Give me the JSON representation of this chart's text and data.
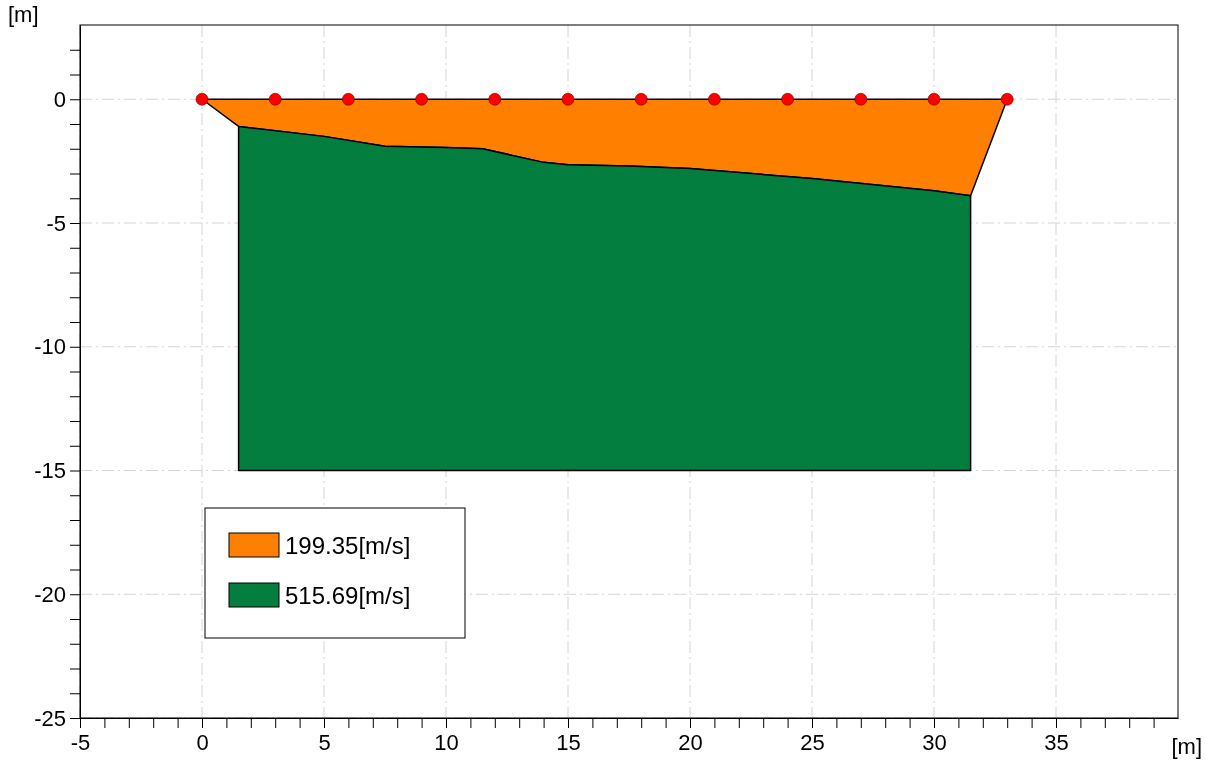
{
  "chart_data": {
    "type": "area",
    "xlabel": "[m]",
    "ylabel": "[m]",
    "xlim": [
      -5,
      40
    ],
    "ylim": [
      -25,
      3
    ],
    "xticks": [
      -5,
      {
        "value": -4,
        "label": null
      },
      {
        "value": -3,
        "label": null
      },
      {
        "value": -2,
        "label": null
      },
      {
        "value": -1,
        "label": null
      },
      0,
      {
        "value": 1,
        "label": null
      },
      {
        "value": 2,
        "label": null
      },
      {
        "value": 3,
        "label": null
      },
      {
        "value": 4,
        "label": null
      },
      5,
      {
        "value": 6,
        "label": null
      },
      {
        "value": 7,
        "label": null
      },
      {
        "value": 8,
        "label": null
      },
      {
        "value": 9,
        "label": null
      },
      10,
      {
        "value": 11,
        "label": null
      },
      {
        "value": 12,
        "label": null
      },
      {
        "value": 13,
        "label": null
      },
      {
        "value": 14,
        "label": null
      },
      15,
      {
        "value": 16,
        "label": null
      },
      {
        "value": 17,
        "label": null
      },
      {
        "value": 18,
        "label": null
      },
      {
        "value": 19,
        "label": null
      },
      20,
      {
        "value": 21,
        "label": null
      },
      {
        "value": 22,
        "label": null
      },
      {
        "value": 23,
        "label": null
      },
      {
        "value": 24,
        "label": null
      },
      25,
      {
        "value": 26,
        "label": null
      },
      {
        "value": 27,
        "label": null
      },
      {
        "value": 28,
        "label": null
      },
      {
        "value": 29,
        "label": null
      },
      30,
      {
        "value": 31,
        "label": null
      },
      {
        "value": 32,
        "label": null
      },
      {
        "value": 33,
        "label": null
      },
      {
        "value": 34,
        "label": null
      },
      35,
      {
        "value": 36,
        "label": null
      },
      {
        "value": 37,
        "label": null
      },
      {
        "value": 38,
        "label": null
      },
      {
        "value": 39,
        "label": null
      }
    ],
    "yticks": [
      -25,
      {
        "value": -24,
        "label": null
      },
      {
        "value": -23,
        "label": null
      },
      {
        "value": -22,
        "label": null
      },
      {
        "value": -21,
        "label": null
      },
      -20,
      {
        "value": -19,
        "label": null
      },
      {
        "value": -18,
        "label": null
      },
      {
        "value": -17,
        "label": null
      },
      {
        "value": -16,
        "label": null
      },
      -15,
      {
        "value": -14,
        "label": null
      },
      {
        "value": -13,
        "label": null
      },
      {
        "value": -12,
        "label": null
      },
      {
        "value": -11,
        "label": null
      },
      -10,
      {
        "value": -9,
        "label": null
      },
      {
        "value": -8,
        "label": null
      },
      {
        "value": -7,
        "label": null
      },
      {
        "value": -6,
        "label": null
      },
      -5,
      {
        "value": -4,
        "label": null
      },
      {
        "value": -3,
        "label": null
      },
      {
        "value": -2,
        "label": null
      },
      {
        "value": -1,
        "label": null
      },
      0,
      {
        "value": 1,
        "label": null
      },
      {
        "value": 2,
        "label": null
      }
    ],
    "grid": true,
    "legend": "bottom left",
    "stacked": true,
    "x": [
      0,
      1.5,
      5,
      7.5,
      10,
      11.5,
      14,
      15,
      17.5,
      20,
      25,
      30,
      31.5,
      33
    ],
    "series": [
      {
        "name": "199.35[m/s]",
        "color": "#ff8000",
        "values": [
          0,
          -1.1,
          -1.5,
          -1.9,
          -1.95,
          -2,
          -2.55,
          -2.65,
          -2.7,
          -2.8,
          -3.2,
          -3.7,
          -3.9,
          0
        ]
      },
      {
        "name": "515.69[m/s]",
        "color": "#037e3e",
        "values": [
          null,
          -13.9,
          -13.5,
          -13.1,
          -13.05,
          -13,
          -12.45,
          -12.35,
          -12.3,
          -12.2,
          -11.8,
          -11.3,
          -11.1,
          null
        ]
      },
      {
        "type": "scatter",
        "color": "#ff0000",
        "marker": "circle",
        "x": [
          0,
          3,
          6,
          9,
          12,
          15,
          18,
          21,
          24,
          27,
          30,
          33
        ],
        "values": [
          0,
          0,
          0,
          0,
          0,
          0,
          0,
          0,
          0,
          0,
          0,
          0
        ]
      }
    ]
  }
}
